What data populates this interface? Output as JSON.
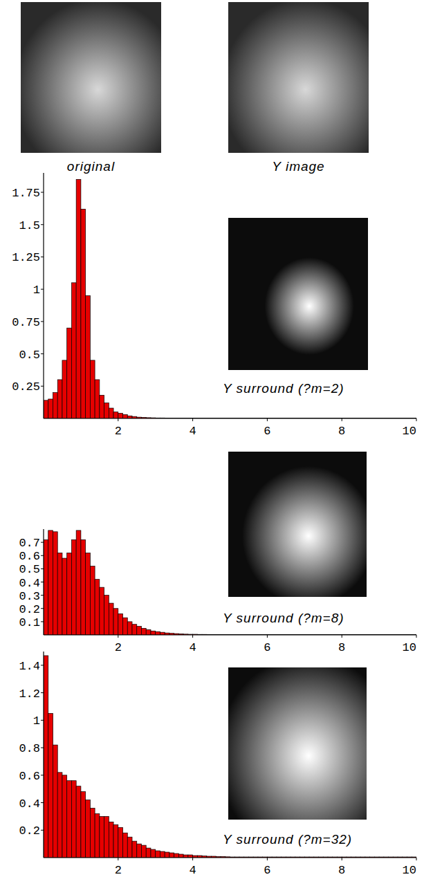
{
  "image_labels": [
    "original",
    "Y image"
  ],
  "chart_data": [
    {
      "type": "histogram",
      "title": "Y surround (?m=2)",
      "color": "#e60000",
      "bins": [
        0,
        0.125,
        0.25,
        0.375,
        0.5,
        0.625,
        0.75,
        0.875,
        1,
        1.125,
        1.25,
        1.375,
        1.5,
        1.625,
        1.75,
        1.875,
        2,
        2.125,
        2.25,
        2.375,
        2.5,
        2.625,
        2.75,
        2.875,
        3,
        3.125,
        3.25,
        3.375,
        3.5,
        3.625,
        3.75,
        3.875,
        4,
        4.125,
        4.25,
        4.375,
        4.5,
        4.625,
        4.75,
        4.875,
        5,
        5.125,
        5.25,
        5.375,
        5.5,
        5.625,
        5.75,
        5.875,
        6,
        6.125,
        6.25,
        6.375,
        6.5,
        6.625,
        6.75,
        6.875,
        7,
        7.125,
        7.25,
        7.375,
        7.5,
        7.625,
        7.75,
        7.875,
        8,
        8.125,
        8.25,
        8.375,
        8.5,
        8.625,
        8.75,
        8.875,
        9,
        9.125,
        9.25,
        9.375,
        9.5,
        9.625,
        9.75,
        9.875,
        10
      ],
      "values": [
        0.14,
        0.15,
        0.2,
        0.3,
        0.45,
        0.7,
        1.05,
        1.85,
        1.62,
        0.95,
        0.45,
        0.3,
        0.18,
        0.12,
        0.08,
        0.05,
        0.04,
        0.03,
        0.02,
        0.015,
        0.01,
        0.008,
        0.006,
        0.005,
        0.004,
        0.004,
        0.003,
        0.003,
        0.003,
        0.003,
        0.003,
        0.003,
        0.003,
        0.003,
        0.003,
        0.003,
        0.003,
        0.003,
        0.003,
        0.003,
        0.003,
        0.003,
        0.003,
        0.003,
        0.003,
        0.003,
        0.003,
        0.003,
        0.003,
        0.003,
        0.003,
        0.003,
        0.003,
        0.003,
        0.003,
        0.003,
        0.003,
        0.003,
        0.003,
        0.003,
        0.003,
        0.003,
        0.003,
        0.003,
        0.003,
        0.003,
        0.003,
        0.003,
        0.003,
        0.003,
        0.003,
        0.003,
        0.003,
        0.003,
        0.003,
        0.003,
        0.003,
        0.003,
        0.003,
        0.003
      ],
      "xlim": [
        0,
        10
      ],
      "xticks": [
        2,
        4,
        6,
        8,
        10
      ],
      "ylim": [
        0,
        1.9
      ],
      "yticks": [
        0.25,
        0.5,
        0.75,
        1,
        1.25,
        1.5,
        1.75
      ]
    },
    {
      "type": "histogram",
      "title": "Y surround (?m=8)",
      "color": "#e60000",
      "bins": [
        0,
        0.125,
        0.25,
        0.375,
        0.5,
        0.625,
        0.75,
        0.875,
        1,
        1.125,
        1.25,
        1.375,
        1.5,
        1.625,
        1.75,
        1.875,
        2,
        2.125,
        2.25,
        2.375,
        2.5,
        2.625,
        2.75,
        2.875,
        3,
        3.125,
        3.25,
        3.375,
        3.5,
        3.625,
        3.75,
        3.875,
        4,
        4.125,
        4.25,
        4.375,
        4.5,
        4.625,
        4.75,
        4.875,
        5,
        5.125,
        5.25,
        5.375,
        5.5,
        5.625,
        5.75,
        5.875,
        6,
        6.125,
        6.25,
        6.375,
        6.5,
        6.625,
        6.75,
        6.875,
        7,
        7.125,
        7.25,
        7.375,
        7.5,
        7.625,
        7.75,
        7.875,
        8,
        8.125,
        8.25,
        8.375,
        8.5,
        8.625,
        8.75,
        8.875,
        9,
        9.125,
        9.25,
        9.375,
        9.5,
        9.625,
        9.75,
        9.875,
        10
      ],
      "values": [
        0.72,
        0.79,
        0.78,
        0.62,
        0.58,
        0.62,
        0.72,
        0.79,
        0.72,
        0.62,
        0.52,
        0.42,
        0.36,
        0.3,
        0.24,
        0.2,
        0.16,
        0.13,
        0.1,
        0.08,
        0.065,
        0.05,
        0.04,
        0.03,
        0.025,
        0.02,
        0.015,
        0.012,
        0.01,
        0.008,
        0.006,
        0.005,
        0.005,
        0.004,
        0.004,
        0.003,
        0.003,
        0.003,
        0.003,
        0.003,
        0.003,
        0.003,
        0.003,
        0.003,
        0.003,
        0.003,
        0.003,
        0.003,
        0.003,
        0.003,
        0.003,
        0.003,
        0.003,
        0.003,
        0.003,
        0.003,
        0.003,
        0.003,
        0.003,
        0.003,
        0.003,
        0.003,
        0.003,
        0.003,
        0.003,
        0.003,
        0.003,
        0.003,
        0.003,
        0.003,
        0.003,
        0.003,
        0.003,
        0.003,
        0.003,
        0.003,
        0.003,
        0.003,
        0.003,
        0.003
      ],
      "xlim": [
        0,
        10
      ],
      "xticks": [
        2,
        4,
        6,
        8,
        10
      ],
      "ylim": [
        0,
        0.8
      ],
      "yticks": [
        0.1,
        0.2,
        0.3,
        0.4,
        0.5,
        0.6,
        0.7
      ]
    },
    {
      "type": "histogram",
      "title": "Y surround (?m=32)",
      "color": "#e60000",
      "bins": [
        0,
        0.125,
        0.25,
        0.375,
        0.5,
        0.625,
        0.75,
        0.875,
        1,
        1.125,
        1.25,
        1.375,
        1.5,
        1.625,
        1.75,
        1.875,
        2,
        2.125,
        2.25,
        2.375,
        2.5,
        2.625,
        2.75,
        2.875,
        3,
        3.125,
        3.25,
        3.375,
        3.5,
        3.625,
        3.75,
        3.875,
        4,
        4.125,
        4.25,
        4.375,
        4.5,
        4.625,
        4.75,
        4.875,
        5,
        5.125,
        5.25,
        5.375,
        5.5,
        5.625,
        5.75,
        5.875,
        6,
        6.125,
        6.25,
        6.375,
        6.5,
        6.625,
        6.75,
        6.875,
        7,
        7.125,
        7.25,
        7.375,
        7.5,
        7.625,
        7.75,
        7.875,
        8,
        8.125,
        8.25,
        8.375,
        8.5,
        8.625,
        8.75,
        8.875,
        9,
        9.125,
        9.25,
        9.375,
        9.5,
        9.625,
        9.75,
        9.875,
        10
      ],
      "values": [
        1.47,
        1.05,
        0.82,
        0.62,
        0.6,
        0.56,
        0.56,
        0.52,
        0.48,
        0.42,
        0.36,
        0.32,
        0.3,
        0.3,
        0.26,
        0.24,
        0.22,
        0.18,
        0.15,
        0.12,
        0.1,
        0.09,
        0.07,
        0.06,
        0.05,
        0.045,
        0.04,
        0.035,
        0.03,
        0.025,
        0.02,
        0.02,
        0.015,
        0.015,
        0.012,
        0.01,
        0.01,
        0.008,
        0.008,
        0.006,
        0.005,
        0.005,
        0.005,
        0.005,
        0.005,
        0.005,
        0.005,
        0.005,
        0.005,
        0.005,
        0.005,
        0.005,
        0.005,
        0.005,
        0.005,
        0.005,
        0.005,
        0.005,
        0.005,
        0.005,
        0.005,
        0.005,
        0.005,
        0.005,
        0.005,
        0.005,
        0.005,
        0.005,
        0.005,
        0.005,
        0.005,
        0.005,
        0.005,
        0.005,
        0.005,
        0.005,
        0.005,
        0.005,
        0.005,
        0.005
      ],
      "xlim": [
        0,
        10
      ],
      "xticks": [
        2,
        4,
        6,
        8,
        10
      ],
      "ylim": [
        0,
        1.5
      ],
      "yticks": [
        0.2,
        0.4,
        0.6,
        0.8,
        1,
        1.2,
        1.4
      ]
    }
  ]
}
